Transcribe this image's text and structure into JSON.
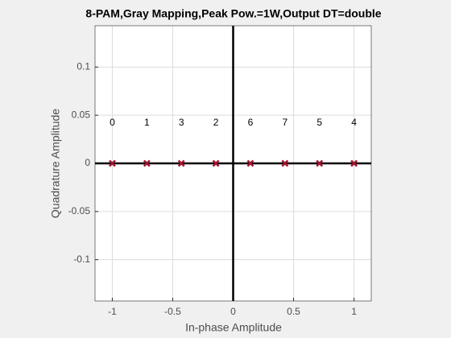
{
  "chart_data": {
    "type": "scatter",
    "title": "8-PAM,Gray Mapping,Peak Pow.=1W,Output DT=double",
    "xlabel": "In-phase Amplitude",
    "ylabel": "Quadrature Amplitude",
    "x": [
      -1,
      -0.7143,
      -0.4286,
      -0.1429,
      0.1429,
      0.4286,
      0.7143,
      1
    ],
    "y": [
      0,
      0,
      0,
      0,
      0,
      0,
      0,
      0
    ],
    "point_labels": [
      "0",
      "1",
      "3",
      "2",
      "6",
      "7",
      "5",
      "4"
    ],
    "color": "#a2142f",
    "xlim": [
      -1.1429,
      1.1429
    ],
    "ylim": [
      -0.1429,
      0.1429
    ],
    "xticks": [
      -1,
      -0.5,
      0,
      0.5,
      1
    ],
    "yticks": [
      -0.1,
      -0.05,
      0,
      0.05,
      0.1
    ],
    "grid": true
  }
}
